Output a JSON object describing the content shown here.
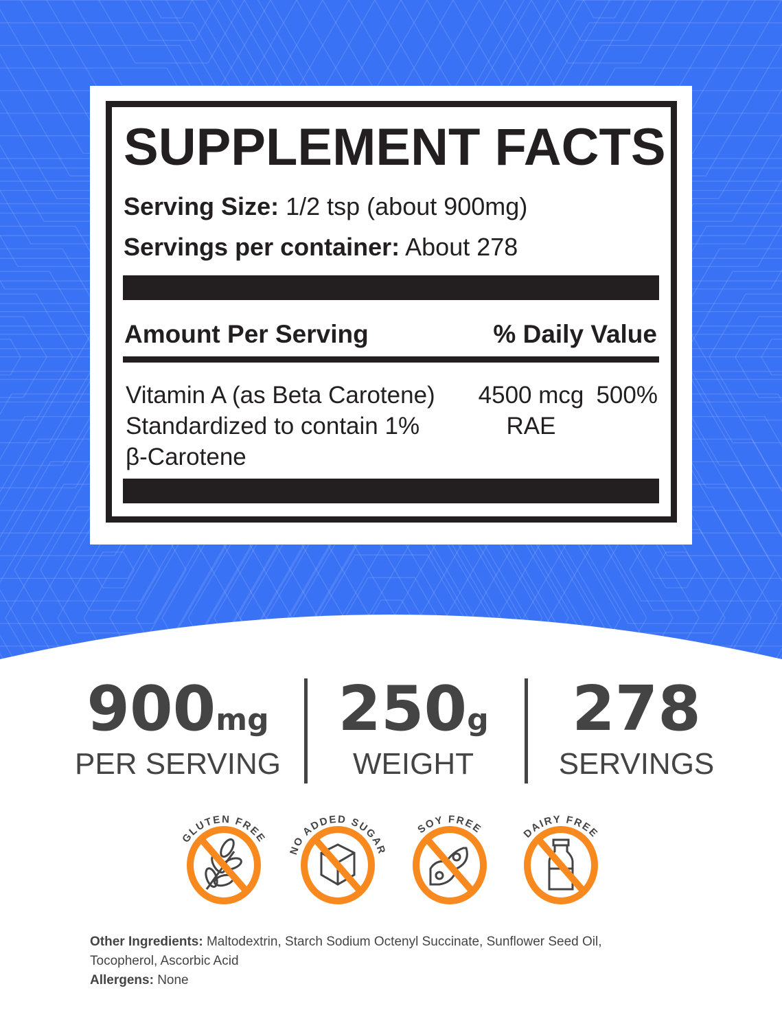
{
  "colors": {
    "background": "#3a72f5",
    "badge": "#f7891f",
    "text": "#231f20",
    "stat": "#444444"
  },
  "label": {
    "title": "SUPPLEMENT FACTS",
    "serving_size_label": "Serving Size:",
    "serving_size_value": "1/2 tsp (about 900mg)",
    "servings_label": "Servings per container:",
    "servings_value": "About 278",
    "amount_header": "Amount Per Serving",
    "dv_header": "% Daily Value",
    "rows": [
      {
        "name_lines": [
          "Vitamin A (as Beta Carotene)",
          "Standardized to contain 1%",
          "β-Carotene"
        ],
        "amount_lines": [
          "4500 mcg",
          "RAE"
        ],
        "dv": "500%"
      }
    ]
  },
  "stats": [
    {
      "number": "900",
      "unit": "mg",
      "label": "PER SERVING"
    },
    {
      "number": "250",
      "unit": "g",
      "label": "WEIGHT"
    },
    {
      "number": "278",
      "unit": "",
      "label": "SERVINGS"
    }
  ],
  "badges": [
    {
      "text": "GLUTEN FREE",
      "icon": "wheat-icon"
    },
    {
      "text": "NO ADDED SUGAR",
      "icon": "sugar-cube-icon"
    },
    {
      "text": "SOY FREE",
      "icon": "soybean-icon"
    },
    {
      "text": "DAIRY FREE",
      "icon": "milk-bottle-icon"
    }
  ],
  "footer": {
    "other_label": "Other Ingredients:",
    "other_value": "Maltodextrin, Starch Sodium Octenyl Succinate, Sunflower Seed Oil,",
    "other_value2": "Tocopherol, Ascorbic Acid",
    "allergens_label": "Allergens:",
    "allergens_value": "None"
  }
}
